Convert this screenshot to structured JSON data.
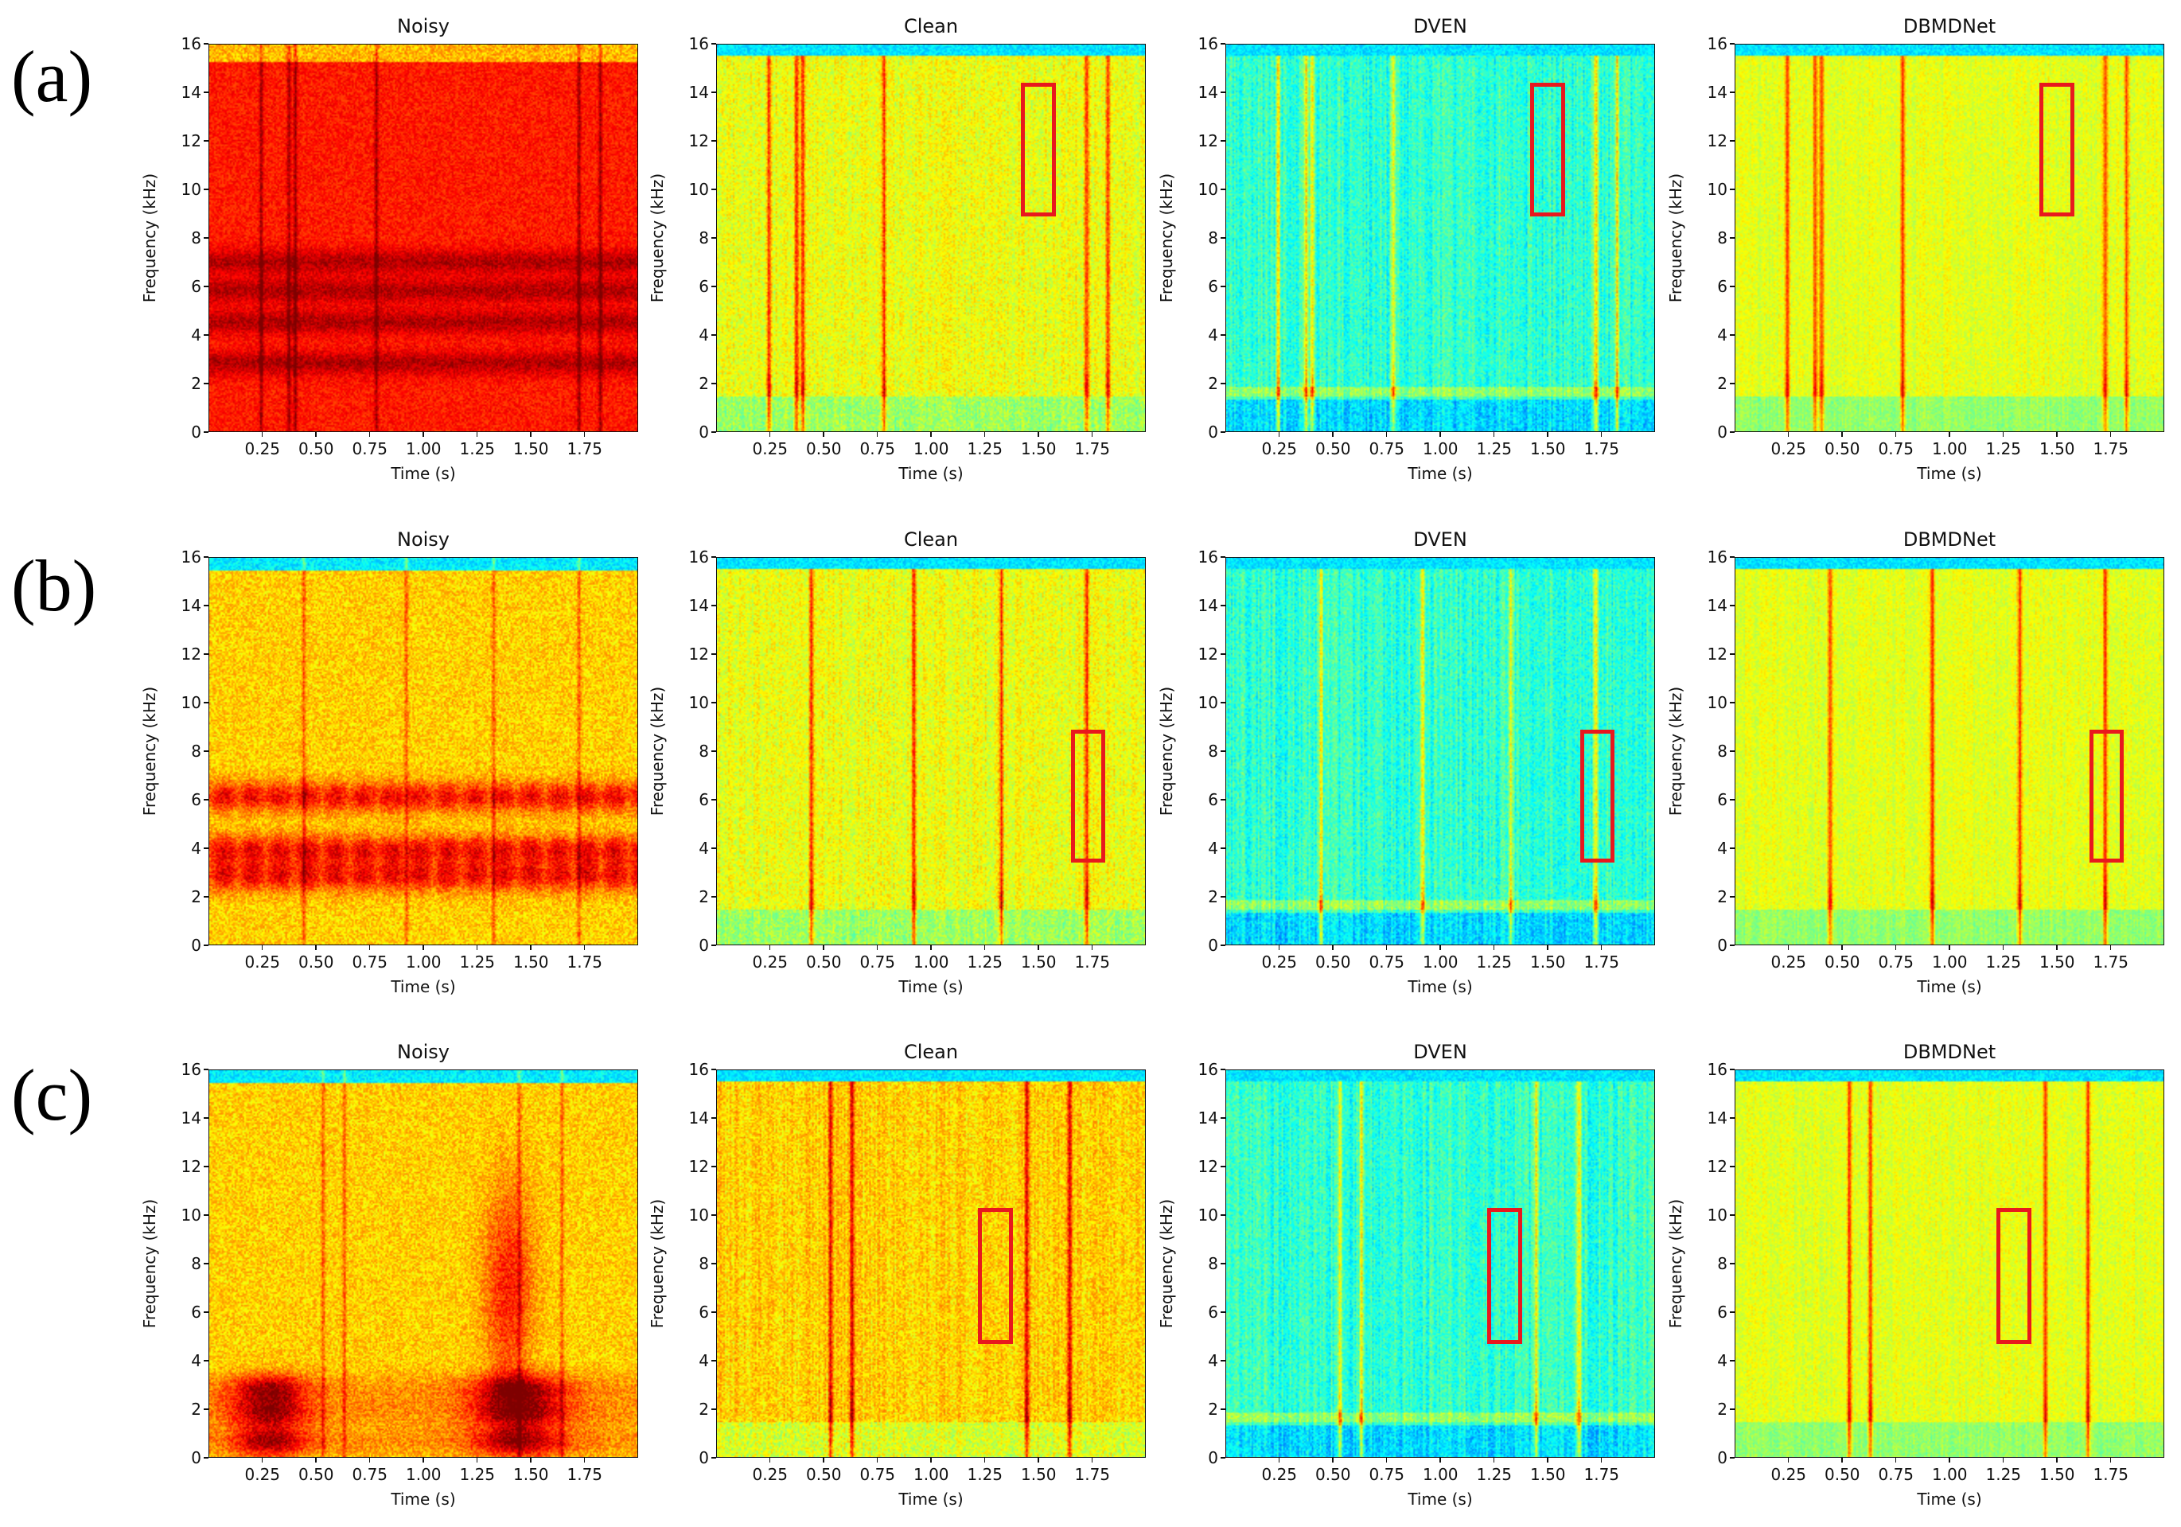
{
  "rows": [
    {
      "label": "(a)",
      "panels": [
        {
          "title": "Noisy",
          "style": "noisy_a",
          "roi": null
        },
        {
          "title": "Clean",
          "style": "clean",
          "roi": {
            "t0": 1.42,
            "t1": 1.58,
            "f0": 8.9,
            "f1": 14.4
          }
        },
        {
          "title": "DVEN",
          "style": "dven",
          "roi": {
            "t0": 1.42,
            "t1": 1.58,
            "f0": 8.9,
            "f1": 14.4
          }
        },
        {
          "title": "DBMDNet",
          "style": "dbmd",
          "roi": {
            "t0": 1.42,
            "t1": 1.58,
            "f0": 8.9,
            "f1": 14.4
          }
        }
      ]
    },
    {
      "label": "(b)",
      "panels": [
        {
          "title": "Noisy",
          "style": "noisy_b",
          "roi": null
        },
        {
          "title": "Clean",
          "style": "clean",
          "roi": {
            "t0": 1.65,
            "t1": 1.81,
            "f0": 3.4,
            "f1": 8.9
          }
        },
        {
          "title": "DVEN",
          "style": "dven",
          "roi": {
            "t0": 1.65,
            "t1": 1.81,
            "f0": 3.4,
            "f1": 8.9
          }
        },
        {
          "title": "DBMDNet",
          "style": "dbmd",
          "roi": {
            "t0": 1.65,
            "t1": 1.81,
            "f0": 3.4,
            "f1": 8.9
          }
        }
      ]
    },
    {
      "label": "(c)",
      "panels": [
        {
          "title": "Noisy",
          "style": "noisy_c",
          "roi": null
        },
        {
          "title": "Clean",
          "style": "clean_c",
          "roi": {
            "t0": 1.22,
            "t1": 1.38,
            "f0": 4.7,
            "f1": 10.3
          }
        },
        {
          "title": "DVEN",
          "style": "dven",
          "roi": {
            "t0": 1.22,
            "t1": 1.38,
            "f0": 4.7,
            "f1": 10.3
          }
        },
        {
          "title": "DBMDNet",
          "style": "dbmd",
          "roi": {
            "t0": 1.22,
            "t1": 1.38,
            "f0": 4.7,
            "f1": 10.3
          }
        }
      ]
    }
  ],
  "chart_data": {
    "type": "heatmap",
    "description_type": "spectrogram grid",
    "xlabel": "Time (s)",
    "ylabel": "Frequency (kHz)",
    "xlim": [
      0.0,
      2.0
    ],
    "ylim": [
      0,
      16
    ],
    "xticks": [
      "0.25",
      "0.50",
      "0.75",
      "1.00",
      "1.25",
      "1.50",
      "1.75"
    ],
    "xtick_values": [
      0.25,
      0.5,
      0.75,
      1.0,
      1.25,
      1.5,
      1.75
    ],
    "yticks": [
      "0",
      "2",
      "4",
      "6",
      "8",
      "10",
      "12",
      "14",
      "16"
    ],
    "ytick_values": [
      0,
      2,
      4,
      6,
      8,
      10,
      12,
      14,
      16
    ],
    "colormap": "jet",
    "column_titles": [
      "Noisy",
      "Clean",
      "DVEN",
      "DBMDNet"
    ],
    "events": {
      "a": [
        0.24,
        0.37,
        0.4,
        0.78,
        1.73,
        1.83
      ],
      "b": [
        0.44,
        0.92,
        1.33,
        1.73
      ],
      "c": [
        0.53,
        0.63,
        1.45,
        1.65
      ]
    },
    "noisy_bands_khz": {
      "a": [
        2.8,
        4.5,
        5.8,
        7.0
      ],
      "b": [
        2.8,
        3.9,
        6.1
      ],
      "c": [
        0.6,
        1.8,
        2.8
      ]
    },
    "roi_color": "#e8181e"
  }
}
